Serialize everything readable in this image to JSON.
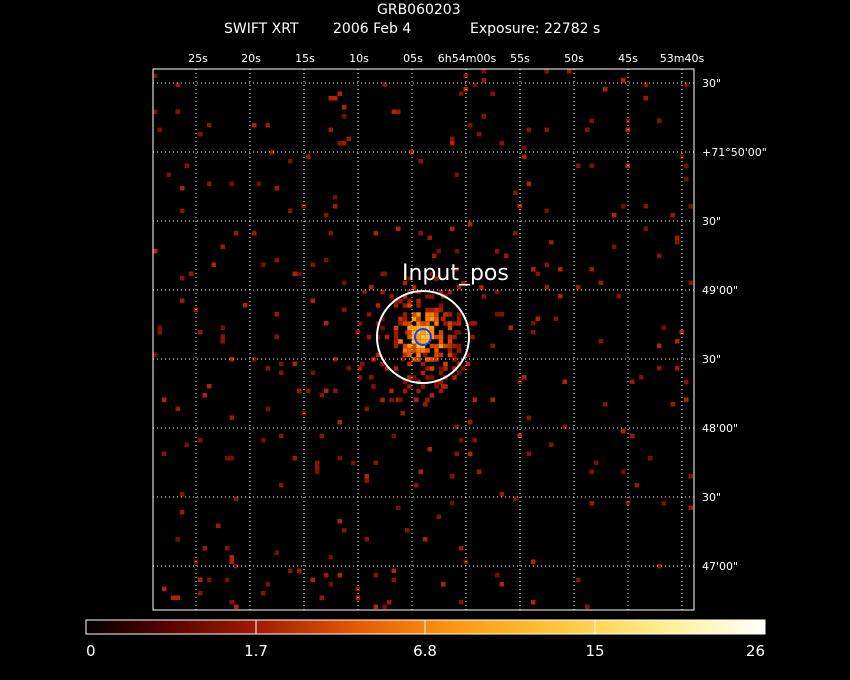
{
  "header": {
    "object": "GRB060203",
    "instrument": "SWIFT XRT",
    "date": "2006 Feb  4",
    "exposure": "Exposure: 22782 s"
  },
  "ra_ticks": [
    "25s",
    "20s",
    "15s",
    "10s",
    "05s",
    "6h54m00s",
    "55s",
    "50s",
    "45s",
    "53m40s"
  ],
  "dec_ticks": [
    "30\"",
    "+71°50'00\"",
    "30\"",
    "49'00\"",
    "30\"",
    "48'00\"",
    "30\"",
    "47'00\""
  ],
  "region_label": "Input_pos",
  "colorbar": {
    "labels": [
      "0",
      "1.7",
      "6.8",
      "15",
      "26"
    ]
  },
  "colors": {
    "background": "#000000",
    "grid": "#ffffff",
    "circle": "#ffffff",
    "inner_circle": "#1f3cff"
  }
}
